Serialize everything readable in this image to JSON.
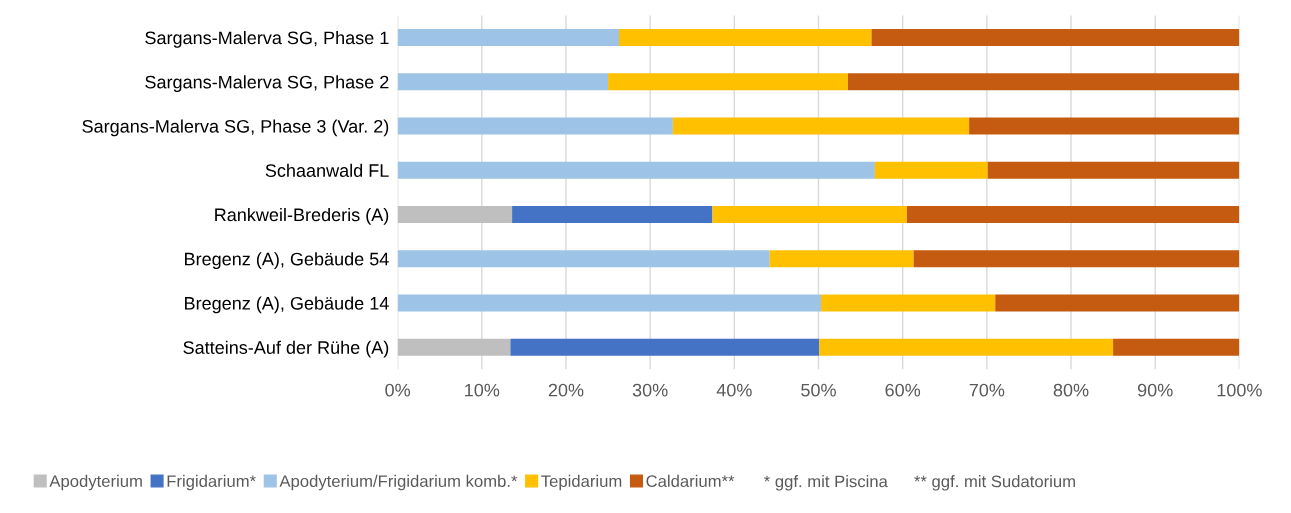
{
  "chart_data": {
    "type": "bar",
    "orientation": "horizontal",
    "stacked": true,
    "categories": [
      "Sargans-Malerva SG, Phase 1",
      "Sargans-Malerva SG, Phase 2",
      "Sargans-Malerva SG, Phase 3 (Var. 2)",
      "Schaanwald FL",
      "Rankweil-Brederis (A)",
      "Bregenz (A), Gebäude 54",
      "Bregenz (A), Gebäude 14",
      "Satteins-Auf der Rühe (A)"
    ],
    "series": [
      {
        "name": "Apodyterium",
        "color": "#bfbfbf",
        "values": [
          0,
          0,
          0,
          0,
          13.6,
          0,
          0,
          13.4
        ]
      },
      {
        "name": "Frigidarium*",
        "color": "#4472c4",
        "values": [
          0,
          0,
          0,
          0,
          23.8,
          0,
          0,
          36.7
        ]
      },
      {
        "name": "Apodyterium/Frigidarium komb.*",
        "color": "#9dc3e6",
        "values": [
          26.3,
          25.0,
          32.7,
          56.7,
          0,
          44.2,
          50.3,
          0
        ]
      },
      {
        "name": "Tepidarium",
        "color": "#ffc000",
        "values": [
          30.0,
          28.5,
          35.2,
          13.4,
          23.1,
          17.1,
          20.7,
          34.9
        ]
      },
      {
        "name": "Caldarium**",
        "color": "#c55a11",
        "values": [
          43.7,
          46.5,
          32.1,
          29.9,
          39.5,
          38.7,
          29.0,
          15.0
        ]
      }
    ],
    "xlim": [
      0,
      100
    ],
    "xticks": [
      {
        "value": 0,
        "label": "0%"
      },
      {
        "value": 10,
        "label": "10%"
      },
      {
        "value": 20,
        "label": "20%"
      },
      {
        "value": 30,
        "label": "30%"
      },
      {
        "value": 40,
        "label": "40%"
      },
      {
        "value": 50,
        "label": "50%"
      },
      {
        "value": 60,
        "label": "60%"
      },
      {
        "value": 70,
        "label": "70%"
      },
      {
        "value": 80,
        "label": "80%"
      },
      {
        "value": 90,
        "label": "90%"
      },
      {
        "value": 100,
        "label": "100%"
      }
    ],
    "grid": "x",
    "legend": "bottom",
    "annotations": [
      "* ggf. mit Piscina",
      "** ggf. mit Sudatorium"
    ]
  }
}
